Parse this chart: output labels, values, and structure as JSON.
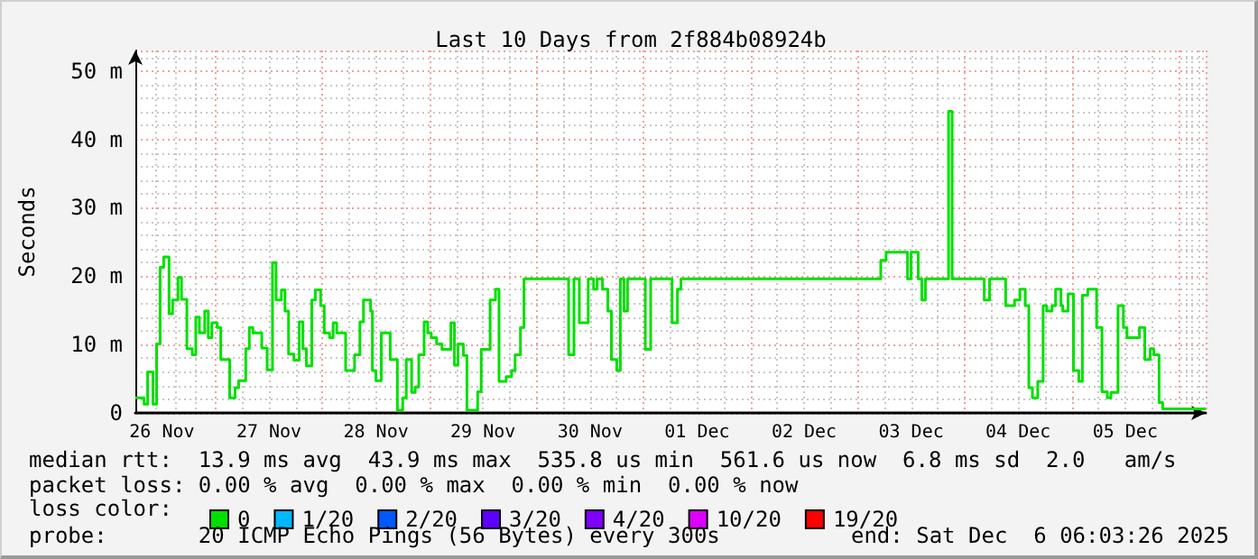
{
  "chart_data": {
    "type": "step",
    "title": "Last 10 Days from 2f884b08924b",
    "ylabel": "Seconds",
    "legend_title": "loss color:",
    "annotations": [
      "median rtt:  13.9 ms avg  43.9 ms max  535.8 us min  561.6 us now  6.8 ms sd  2.0   am/s",
      "packet loss: 0.00 % avg  0.00 % max  0.00 % min  0.00 % now",
      "probe:       20 ICMP Echo Pings (56 Bytes) every 300s",
      "end: Sat Dec  6 06:03:26 2025"
    ],
    "xlim": [
      "2025-11-26T06:03",
      "2025-12-06T06:03"
    ],
    "xticks": [
      {
        "value": "2025-11-26T12:00",
        "label": "26 Nov"
      },
      {
        "value": "2025-11-27T12:00",
        "label": "27 Nov"
      },
      {
        "value": "2025-11-28T12:00",
        "label": "28 Nov"
      },
      {
        "value": "2025-11-29T12:00",
        "label": "29 Nov"
      },
      {
        "value": "2025-11-30T12:00",
        "label": "30 Nov"
      },
      {
        "value": "2025-12-01T12:00",
        "label": "01 Dec"
      },
      {
        "value": "2025-12-02T12:00",
        "label": "02 Dec"
      },
      {
        "value": "2025-12-03T12:00",
        "label": "03 Dec"
      },
      {
        "value": "2025-12-04T12:00",
        "label": "04 Dec"
      },
      {
        "value": "2025-12-05T12:00",
        "label": "05 Dec"
      }
    ],
    "ylim": [
      0,
      53
    ],
    "yticks": [
      0,
      {
        "value": 10,
        "label": "10 m"
      },
      {
        "value": 20,
        "label": "20 m"
      },
      {
        "value": 30,
        "label": "30 m"
      },
      {
        "value": 40,
        "label": "40 m"
      },
      {
        "value": 50,
        "label": "50 m"
      }
    ],
    "grid": true,
    "legend": "bottom",
    "series": [
      {
        "name": "0",
        "color": "#00e000",
        "x": [
          "2025-11-26T06:03",
          "2025-11-26T08:00",
          "2025-11-26T08:48",
          "2025-11-26T10:00",
          "2025-11-26T10:48",
          "2025-11-26T11:36",
          "2025-11-26T12:24",
          "2025-11-26T13:36",
          "2025-11-26T14:24",
          "2025-11-26T15:36",
          "2025-11-26T16:24",
          "2025-11-26T17:36",
          "2025-11-26T18:48",
          "2025-11-26T19:36",
          "2025-11-26T20:24",
          "2025-11-26T21:36",
          "2025-11-26T22:24",
          "2025-11-26T23:12",
          "2025-11-27T00:24",
          "2025-11-27T01:12",
          "2025-11-27T03:12",
          "2025-11-27T04:24",
          "2025-11-27T05:12",
          "2025-11-27T06:48",
          "2025-11-27T07:36",
          "2025-11-27T08:24",
          "2025-11-27T10:24",
          "2025-11-27T11:36",
          "2025-11-27T12:48",
          "2025-11-27T13:36",
          "2025-11-27T14:48",
          "2025-11-27T15:36",
          "2025-11-27T16:24",
          "2025-11-27T17:36",
          "2025-11-27T18:48",
          "2025-11-27T19:36",
          "2025-11-27T20:24",
          "2025-11-27T21:36",
          "2025-11-27T22:24",
          "2025-11-27T23:36",
          "2025-11-28T00:24",
          "2025-11-28T01:36",
          "2025-11-28T02:24",
          "2025-11-28T03:12",
          "2025-11-28T05:12",
          "2025-11-28T07:12",
          "2025-11-28T08:24",
          "2025-11-28T09:12",
          "2025-11-28T10:48",
          "2025-11-28T11:12",
          "2025-11-28T12:00",
          "2025-11-28T13:12",
          "2025-11-28T15:12",
          "2025-11-28T16:48",
          "2025-11-28T18:00",
          "2025-11-28T18:48",
          "2025-11-28T20:00",
          "2025-11-28T20:48",
          "2025-11-28T21:36",
          "2025-11-28T22:48",
          "2025-11-28T23:36",
          "2025-11-29T00:24",
          "2025-11-29T01:36",
          "2025-11-29T02:48",
          "2025-11-29T04:48",
          "2025-11-29T05:36",
          "2025-11-29T06:24",
          "2025-11-29T07:36",
          "2025-11-29T08:24",
          "2025-11-29T10:48",
          "2025-11-29T11:36",
          "2025-11-29T13:36",
          "2025-11-29T14:48",
          "2025-11-29T15:36",
          "2025-11-29T17:12",
          "2025-11-29T18:24",
          "2025-11-29T19:12",
          "2025-11-29T20:24",
          "2025-11-29T21:12",
          "2025-11-30T07:12",
          "2025-11-30T08:24",
          "2025-11-30T09:36",
          "2025-11-30T11:36",
          "2025-11-30T12:48",
          "2025-11-30T13:36",
          "2025-11-30T14:48",
          "2025-11-30T16:00",
          "2025-11-30T16:48",
          "2025-11-30T18:00",
          "2025-11-30T18:48",
          "2025-11-30T19:36",
          "2025-11-30T20:24",
          "2025-12-01T00:24",
          "2025-12-01T01:36",
          "2025-12-01T06:24",
          "2025-12-01T07:36",
          "2025-12-01T08:24",
          "2025-12-03T05:12",
          "2025-12-03T06:24",
          "2025-12-03T11:12",
          "2025-12-03T12:00",
          "2025-12-03T13:36",
          "2025-12-03T14:24",
          "2025-12-03T15:12",
          "2025-12-03T20:24",
          "2025-12-03T21:12",
          "2025-12-04T04:24",
          "2025-12-04T05:36",
          "2025-12-04T09:12",
          "2025-12-04T11:12",
          "2025-12-04T12:24",
          "2025-12-04T13:36",
          "2025-12-04T14:24",
          "2025-12-04T15:12",
          "2025-12-04T16:24",
          "2025-12-04T17:36",
          "2025-12-04T18:24",
          "2025-12-04T19:36",
          "2025-12-04T20:24",
          "2025-12-04T21:36",
          "2025-12-04T22:00",
          "2025-12-04T23:12",
          "2025-12-05T00:24",
          "2025-12-05T01:36",
          "2025-12-05T02:24",
          "2025-12-05T03:36",
          "2025-12-05T05:36",
          "2025-12-05T06:48",
          "2025-12-05T08:00",
          "2025-12-05T08:48",
          "2025-12-05T10:24",
          "2025-12-05T11:36",
          "2025-12-05T12:24",
          "2025-12-05T15:12",
          "2025-12-05T16:24",
          "2025-12-05T17:36",
          "2025-12-05T18:24",
          "2025-12-05T19:36",
          "2025-12-05T20:24",
          "2025-12-06T06:03"
        ],
        "values": [
          2.2,
          1.3,
          6.0,
          1.3,
          10.1,
          21.3,
          22.8,
          14.5,
          16.5,
          19.8,
          16.6,
          9.4,
          8.5,
          14.0,
          11.7,
          14.9,
          11.0,
          13.2,
          12.5,
          7.8,
          2.2,
          3.7,
          4.7,
          9.4,
          12.5,
          11.7,
          9.5,
          6.3,
          22.0,
          16.5,
          18.0,
          14.9,
          8.6,
          7.7,
          13.3,
          9.4,
          6.9,
          16.5,
          18.0,
          15.7,
          11.7,
          11.0,
          13.2,
          11.7,
          6.2,
          8.5,
          13.3,
          16.5,
          14.9,
          6.2,
          4.7,
          11.7,
          7.8,
          0.4,
          2.2,
          7.8,
          3.0,
          3.8,
          8.5,
          13.3,
          11.7,
          11.0,
          10.1,
          9.3,
          13.2,
          7.0,
          10.1,
          8.4,
          0.4,
          3.1,
          9.3,
          16.5,
          18.1,
          4.6,
          5.3,
          6.2,
          8.5,
          12.5,
          19.6,
          8.5,
          19.6,
          13.2,
          19.6,
          18.1,
          19.6,
          18.1,
          14.9,
          7.8,
          6.2,
          19.6,
          14.9,
          19.6,
          9.3,
          19.6,
          13.2,
          18.1,
          19.6,
          22.3,
          23.5,
          19.6,
          23.5,
          19.6,
          16.5,
          19.6,
          44.1,
          19.6,
          16.5,
          19.6,
          15.7,
          16.5,
          18.1,
          15.7,
          3.7,
          2.2,
          4.6,
          15.7,
          14.9,
          15.7,
          18.1,
          15.7,
          14.9,
          17.4,
          6.2,
          4.6,
          17.2,
          18.1,
          12.5,
          3.1,
          2.2,
          3.0,
          15.7,
          12.5,
          11.0,
          12.5,
          7.8,
          9.4,
          8.5,
          1.5,
          0.6,
          0.6
        ]
      },
      {
        "name": "1/20",
        "color": "#00b8ff"
      },
      {
        "name": "2/20",
        "color": "#0059ff"
      },
      {
        "name": "3/20",
        "color": "#5e00ff"
      },
      {
        "name": "4/20",
        "color": "#7e00ff"
      },
      {
        "name": "10/20",
        "color": "#dd00ff"
      },
      {
        "name": "19/20",
        "color": "#ff0000"
      }
    ]
  }
}
